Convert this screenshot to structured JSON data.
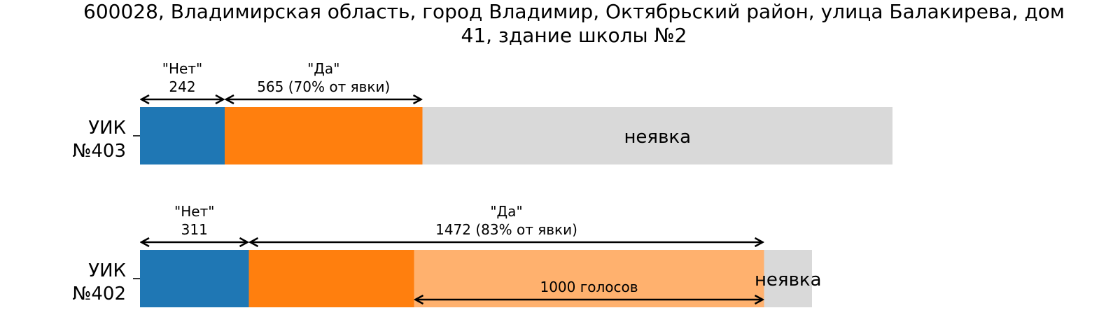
{
  "chart_data": {
    "type": "bar",
    "orientation": "horizontal-stacked",
    "title_lines": [
      "600028, Владимирская область, город Владимир, Октябрьский район, улица Балакирева, дом",
      "41, здание школы №2"
    ],
    "colors": {
      "no": "#1f77b4",
      "yes": "#ff7f0e",
      "yes_extra": "#ffb16e",
      "absent": "#d9d9d9"
    },
    "rows": [
      {
        "label_lines": [
          "УИК",
          "№403"
        ],
        "registered": 2150,
        "no_votes": 242,
        "yes_votes": 565,
        "no_annotation": [
          "\"Нет\"",
          "242"
        ],
        "yes_annotation": [
          "\"Да\"",
          "565 (70% от явки)"
        ],
        "absent_label": "неявка"
      },
      {
        "label_lines": [
          "УИК",
          "№402"
        ],
        "registered": 1920,
        "no_votes": 311,
        "yes_votes": 1472,
        "yes_base_votes": 472,
        "extra_votes": 1000,
        "no_annotation": [
          "\"Нет\"",
          "311"
        ],
        "yes_annotation": [
          "\"Да\"",
          "1472 (83% от явки)"
        ],
        "extra_annotation": "1000 голосов",
        "absent_label": "неявка"
      }
    ]
  }
}
